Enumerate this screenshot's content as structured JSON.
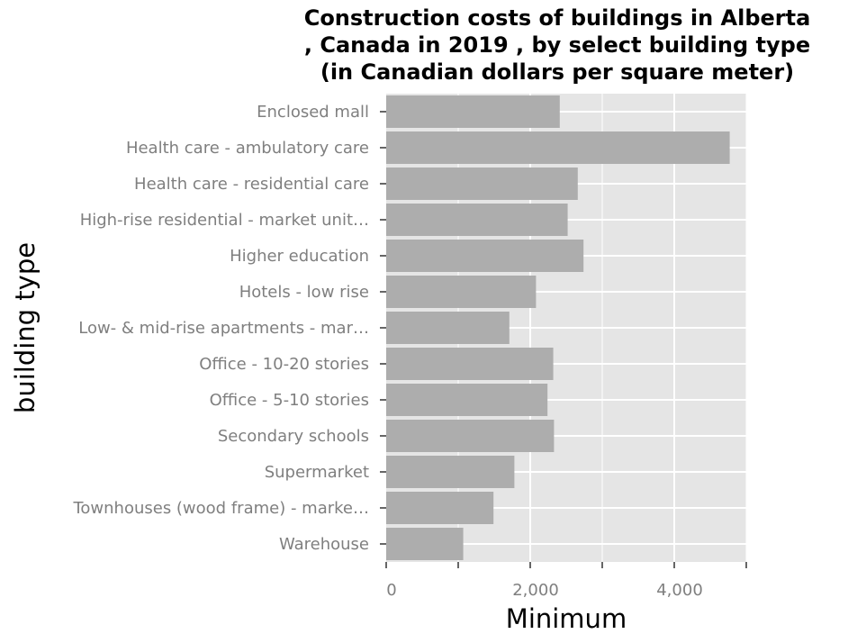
{
  "chart_data": {
    "type": "bar",
    "orientation": "horizontal",
    "title_lines": [
      "Construction costs of buildings in Alberta",
      ", Canada in 2019 , by select building type",
      "(in Canadian dollars per square meter)"
    ],
    "xlabel": "Minimum",
    "ylabel": "building type",
    "categories": [
      "Enclosed mall",
      "Health care - ambulatory care",
      "Health care - residential care",
      "High-rise residential - market unit…",
      "Higher education",
      "Hotels - low rise",
      "Low- & mid-rise apartments - mar…",
      "Office - 10-20 stories",
      "Office - 5-10 stories",
      "Secondary schools",
      "Supermarket",
      "Townhouses (wood frame) - marke…",
      "Warehouse"
    ],
    "values": [
      2410,
      4770,
      2660,
      2520,
      2740,
      2080,
      1710,
      2320,
      2240,
      2330,
      1780,
      1490,
      1070
    ],
    "xlim": [
      0,
      5000
    ],
    "xticks": [
      0,
      2000,
      4000
    ],
    "xtick_labels": [
      "0",
      "2,000",
      "4,000"
    ],
    "grid": true,
    "legend": "none",
    "colors": {
      "panel": "#e5e5e5",
      "bar": "#adadad",
      "grid": "#ffffff",
      "tick": "#333333"
    }
  }
}
